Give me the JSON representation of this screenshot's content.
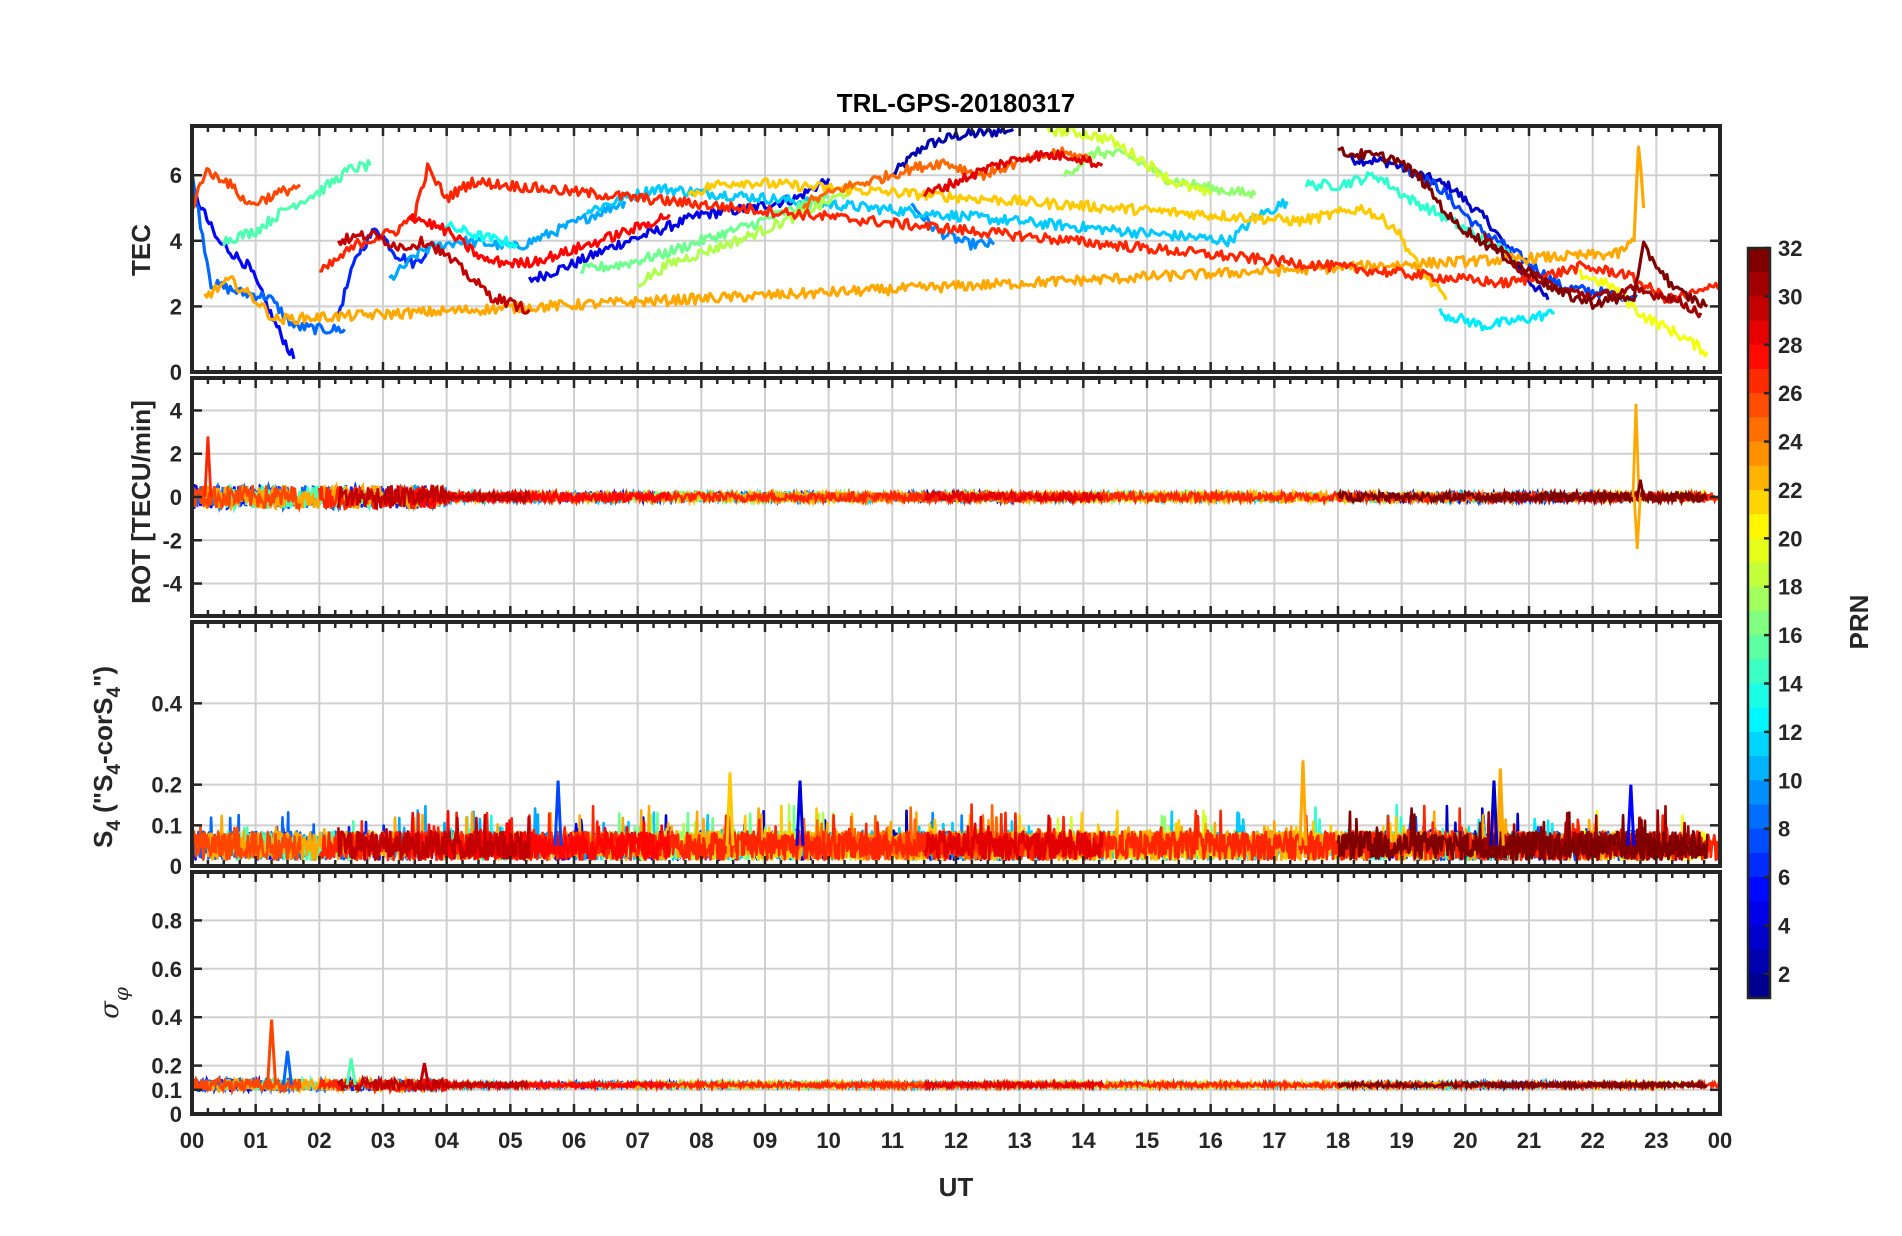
{
  "chart_data": {
    "type": "line",
    "title": "TRL-GPS-20180317",
    "xlabel": "UT",
    "x_tick_labels": [
      "00",
      "01",
      "02",
      "03",
      "04",
      "05",
      "06",
      "07",
      "08",
      "09",
      "10",
      "11",
      "12",
      "13",
      "14",
      "15",
      "16",
      "17",
      "18",
      "19",
      "20",
      "21",
      "22",
      "23",
      "00"
    ],
    "xlim": [
      0,
      24
    ],
    "colorbar": {
      "label": "PRN",
      "range": [
        1,
        32
      ],
      "tick_labels": [
        "32",
        "30",
        "28",
        "26",
        "24",
        "22",
        "20",
        "18",
        "16",
        "14",
        "12",
        "10",
        "8",
        "6",
        "4",
        "2"
      ],
      "tick_values": [
        32,
        30,
        28,
        26,
        24,
        22,
        20,
        18,
        16,
        14,
        12,
        10,
        8,
        6,
        4,
        2
      ],
      "colormap": "jet",
      "colors": [
        "#00008f",
        "#0000ff",
        "#0080ff",
        "#00ffff",
        "#80ff80",
        "#ffff00",
        "#ff8000",
        "#ff0000",
        "#800000"
      ]
    },
    "panels": [
      {
        "name": "tec",
        "ylabel": "TEC",
        "ylim": [
          0,
          7.5
        ],
        "y_tick_labels": [
          "0",
          "2",
          "4",
          "6"
        ],
        "y_tick_values": [
          0,
          2,
          4,
          6
        ],
        "series": [
          {
            "prn": 2,
            "x": [
              11.0,
              11.5,
              12.0,
              12.5,
              12.9
            ],
            "y": [
              6.0,
              6.9,
              7.2,
              7.3,
              7.4
            ]
          },
          {
            "prn": 3,
            "x": [
              18.2,
              18.8,
              19.3,
              19.8,
              20.4,
              20.9,
              21.3
            ],
            "y": [
              6.5,
              6.4,
              6.0,
              5.6,
              4.5,
              3.0,
              2.2
            ]
          },
          {
            "prn": 4,
            "x": [
              5.3,
              6.0,
              6.7,
              7.3,
              8.0,
              8.8,
              9.5,
              10.0
            ],
            "y": [
              2.8,
              3.3,
              3.9,
              4.3,
              4.8,
              5.0,
              5.3,
              5.9
            ]
          },
          {
            "prn": 5,
            "x": [
              0.0,
              0.4,
              0.9,
              1.3,
              1.6
            ],
            "y": [
              5.6,
              4.0,
              3.2,
              1.5,
              0.4
            ]
          },
          {
            "prn": 6,
            "x": [
              2.3,
              2.6,
              2.9,
              3.2,
              3.5,
              3.8
            ],
            "y": [
              1.8,
              3.6,
              4.4,
              3.6,
              3.3,
              3.9
            ]
          },
          {
            "prn": 7,
            "x": [
              19.0,
              19.6,
              20.2,
              20.8,
              21.5,
              22.2,
              22.7
            ],
            "y": [
              6.3,
              5.6,
              4.4,
              3.6,
              2.6,
              2.4,
              2.3
            ]
          },
          {
            "prn": 8,
            "x": [
              0.0,
              0.3,
              0.8,
              1.2,
              1.6,
              2.0,
              2.4
            ],
            "y": [
              6.0,
              2.7,
              2.4,
              2.3,
              1.4,
              1.3,
              1.3
            ]
          },
          {
            "prn": 9,
            "x": [
              11.3,
              11.7,
              12.2,
              12.6
            ],
            "y": [
              5.1,
              4.3,
              3.9,
              3.9
            ]
          },
          {
            "prn": 10,
            "x": [
              3.1,
              3.6,
              4.2,
              4.7,
              5.1,
              5.6,
              6.2,
              6.8
            ],
            "y": [
              2.8,
              3.7,
              4.0,
              3.9,
              3.8,
              4.2,
              4.7,
              5.2
            ]
          },
          {
            "prn": 11,
            "x": [
              6.2,
              6.8,
              7.3,
              16.3,
              16.7,
              17.2
            ],
            "y": [
              4.9,
              5.3,
              5.6,
              4.0,
              4.7,
              5.2
            ]
          },
          {
            "prn": 12,
            "x": [
              19.6,
              20.3,
              20.9,
              21.4
            ],
            "y": [
              1.8,
              1.4,
              1.6,
              1.8
            ]
          },
          {
            "prn": 13,
            "x": [
              3.9,
              4.6,
              5.1
            ],
            "y": [
              4.5,
              4.1,
              3.9
            ]
          },
          {
            "prn": 14,
            "x": [
              17.5,
              18.0,
              18.6,
              19.1,
              19.7,
              20.3,
              20.8
            ],
            "y": [
              5.7,
              5.7,
              6.0,
              5.3,
              4.7,
              4.0,
              3.5
            ]
          },
          {
            "prn": 15,
            "x": [
              0.5,
              1.0,
              1.5,
              2.0,
              2.5,
              2.8
            ],
            "y": [
              4.0,
              4.3,
              5.0,
              5.5,
              6.2,
              6.3
            ]
          },
          {
            "prn": 16,
            "x": [
              6.1,
              6.8,
              7.4,
              8.0,
              8.8,
              9.5,
              10.0
            ],
            "y": [
              3.1,
              3.3,
              3.6,
              4.0,
              4.5,
              5.0,
              5.3
            ]
          },
          {
            "prn": 17,
            "x": [
              13.7,
              14.2,
              14.7,
              15.3,
              16.0,
              16.7
            ],
            "y": [
              6.0,
              6.7,
              6.6,
              5.9,
              5.6,
              5.4
            ]
          },
          {
            "prn": 18,
            "x": [
              7.0,
              7.5,
              8.1,
              8.7,
              9.3,
              9.9,
              10.4
            ],
            "y": [
              2.7,
              3.3,
              3.7,
              4.1,
              4.6,
              5.1,
              5.6
            ]
          },
          {
            "prn": 19,
            "x": [
              13.4,
              13.9,
              14.4,
              14.9,
              15.4,
              16.0
            ],
            "y": [
              7.4,
              7.3,
              7.1,
              6.5,
              5.8,
              5.4
            ]
          },
          {
            "prn": 20,
            "x": [
              21.8,
              22.3,
              22.8,
              23.3,
              23.8
            ],
            "y": [
              3.0,
              2.6,
              1.7,
              1.2,
              0.6
            ]
          },
          {
            "prn": 22,
            "x": [
              7.8,
              8.2,
              8.6,
              17.4,
              17.9,
              18.4,
              18.9,
              19.3,
              19.7
            ],
            "y": [
              5.4,
              5.7,
              5.8,
              4.6,
              4.8,
              5.0,
              4.4,
              3.1,
              2.2
            ]
          },
          {
            "prn": 23,
            "x": [
              0.2,
              0.6,
              1.0,
              1.3,
              22.4,
              22.65,
              22.72,
              22.8
            ],
            "y": [
              2.3,
              2.8,
              2.2,
              1.6,
              3.6,
              4.0,
              7.0,
              5.0
            ]
          },
          {
            "prn": 25,
            "x": [
              9.6,
              10.2,
              10.8,
              11.3,
              11.8,
              12.4,
              13.0,
              13.6,
              14.1
            ],
            "y": [
              5.1,
              5.6,
              5.9,
              6.2,
              6.4,
              6.0,
              6.4,
              6.7,
              6.5
            ]
          },
          {
            "prn": 26,
            "x": [
              0.0,
              0.2,
              0.5,
              0.9,
              1.3,
              1.7
            ],
            "y": [
              5.0,
              6.1,
              5.9,
              5.1,
              5.4,
              5.7
            ]
          },
          {
            "prn": 27,
            "x": [
              2.0,
              2.6,
              3.2,
              3.5,
              3.7,
              4.0,
              4.4,
              20.6,
              21.2,
              21.8,
              22.5,
              23.2,
              23.8,
              24.0
            ],
            "y": [
              3.0,
              3.9,
              4.3,
              4.8,
              6.2,
              5.3,
              5.8,
              2.7,
              2.9,
              3.2,
              3.0,
              2.2,
              2.5,
              2.7
            ]
          },
          {
            "prn": 28,
            "x": [
              3.4,
              4.0,
              4.6,
              5.2,
              5.8,
              6.4,
              7.0,
              7.5
            ],
            "y": [
              4.8,
              4.3,
              3.4,
              3.3,
              3.6,
              4.0,
              4.4,
              4.8
            ]
          },
          {
            "prn": 29,
            "x": [
              11.5,
              12.0,
              12.6,
              13.2,
              13.8,
              14.3
            ],
            "y": [
              5.4,
              5.8,
              6.3,
              6.6,
              6.6,
              6.3
            ]
          },
          {
            "prn": 30,
            "x": [
              2.3,
              2.8,
              3.3,
              3.7,
              4.2,
              4.7,
              5.3
            ],
            "y": [
              4.0,
              4.2,
              3.8,
              4.0,
              3.2,
              2.3,
              1.9
            ]
          },
          {
            "prn": 31,
            "x": [
              20.3,
              20.9,
              21.5,
              22.1,
              22.6,
              23.2,
              23.7
            ],
            "y": [
              4.1,
              3.1,
              2.5,
              2.3,
              2.5,
              2.3,
              1.8
            ]
          },
          {
            "prn": 32,
            "x": [
              18.0,
              18.5,
              18.9,
              19.3,
              19.8,
              20.4,
              20.9,
              21.5,
              22.0,
              22.65,
              22.8,
              23.3,
              23.8
            ],
            "y": [
              6.7,
              6.6,
              6.5,
              5.9,
              4.6,
              3.8,
              3.2,
              2.4,
              2.1,
              2.3,
              3.8,
              2.5,
              2.0
            ]
          }
        ]
      },
      {
        "name": "rot",
        "ylabel": "ROT [TECU/min]",
        "ylim": [
          -5.5,
          5.5
        ],
        "y_tick_labels": [
          "-4",
          "-2",
          "0",
          "2",
          "4"
        ],
        "y_tick_values": [
          -4,
          -2,
          0,
          2,
          4
        ],
        "note": "Values near zero all day; spike to 2.8 at 00:15 (PRN 27) and to 4.3 / -2.4 at 22:40 (PRN 23)",
        "events": [
          {
            "prn": 27,
            "x": 0.25,
            "y": 2.8
          },
          {
            "prn": 23,
            "x": 22.68,
            "y": 4.3
          },
          {
            "prn": 23,
            "x": 22.7,
            "y": -2.4
          },
          {
            "prn": 32,
            "x": 22.75,
            "y": 0.8
          }
        ]
      },
      {
        "name": "s4",
        "ylabel": "S4 (\"S4-corS4\")",
        "ylabel_parts": [
          "S",
          "4",
          " (\"S",
          "4",
          "-corS",
          "4",
          "\")"
        ],
        "ylim": [
          0,
          0.6
        ],
        "y_tick_labels": [
          "0",
          "0.1",
          "0.2",
          "0.4"
        ],
        "y_tick_values": [
          0,
          0.1,
          0.2,
          0.4
        ],
        "note": "Background noise 0.02-0.1; peaks up to ~0.26",
        "peaks": [
          {
            "prn": 7,
            "x": 5.75,
            "y": 0.21
          },
          {
            "prn": 22,
            "x": 8.45,
            "y": 0.23
          },
          {
            "prn": 4,
            "x": 9.55,
            "y": 0.21
          },
          {
            "prn": 23,
            "x": 17.45,
            "y": 0.26
          },
          {
            "prn": 23,
            "x": 20.55,
            "y": 0.24
          },
          {
            "prn": 3,
            "x": 20.45,
            "y": 0.21
          },
          {
            "prn": 5,
            "x": 22.6,
            "y": 0.2
          }
        ]
      },
      {
        "name": "sigma-phi",
        "ylabel": "σφ",
        "ylabel_parts": [
          "σ",
          "φ"
        ],
        "ylim": [
          0,
          1.0
        ],
        "y_tick_labels": [
          "0",
          "0.1",
          "0.2",
          "0.4",
          "0.6",
          "0.8"
        ],
        "y_tick_values": [
          0,
          0.1,
          0.2,
          0.4,
          0.6,
          0.8
        ],
        "note": "Baseline ~0.12 all day; spike 0.39 near 01:15",
        "peaks": [
          {
            "prn": 26,
            "x": 1.25,
            "y": 0.39
          },
          {
            "prn": 8,
            "x": 1.5,
            "y": 0.26
          },
          {
            "prn": 15,
            "x": 2.5,
            "y": 0.23
          },
          {
            "prn": 30,
            "x": 3.65,
            "y": 0.21
          }
        ]
      }
    ]
  }
}
